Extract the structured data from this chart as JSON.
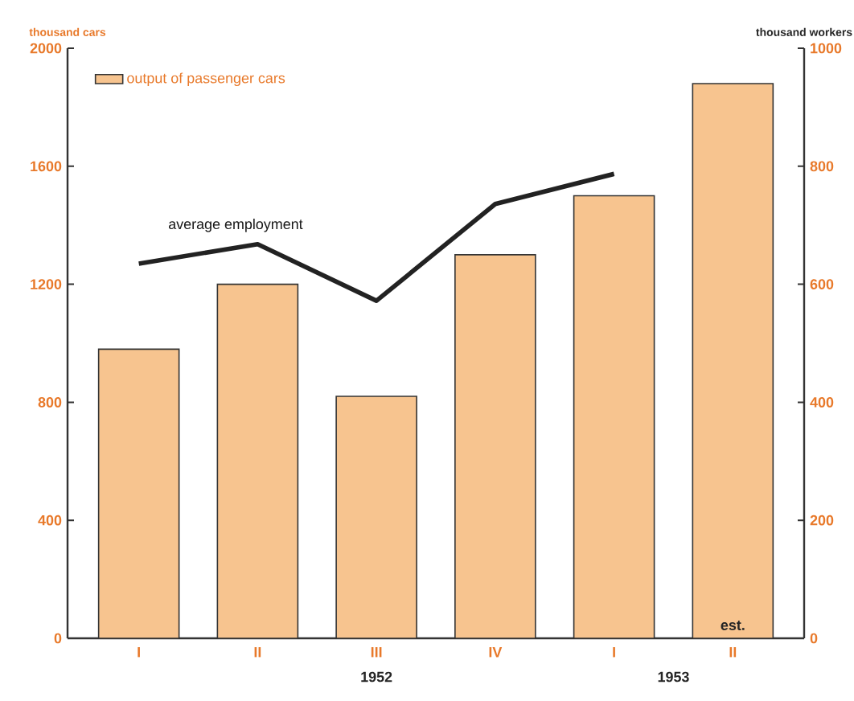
{
  "chart_data": {
    "type": "bar",
    "categories": [
      "I",
      "II",
      "III",
      "IV",
      "I",
      "II"
    ],
    "ylabel": "thousand cars",
    "y2label": "thousand workers",
    "ylim": [
      0,
      2000
    ],
    "yticks": [
      0,
      400,
      800,
      1200,
      1600,
      2000
    ],
    "y2lim": [
      0,
      1000
    ],
    "y2ticks": [
      0,
      200,
      400,
      600,
      800,
      1000
    ],
    "legend": "top left",
    "series": [
      {
        "name": "output of passenger cars",
        "color": "#f7c48f",
        "values": [
          980,
          1200,
          820,
          1300,
          1500,
          1880
        ]
      },
      {
        "name": "average employment",
        "type": "line",
        "axis": "y2",
        "color": "#222222",
        "values": [
          635,
          668,
          572,
          736,
          787,
          null
        ]
      }
    ],
    "annotations": [
      "1952",
      "1953",
      "est."
    ]
  }
}
